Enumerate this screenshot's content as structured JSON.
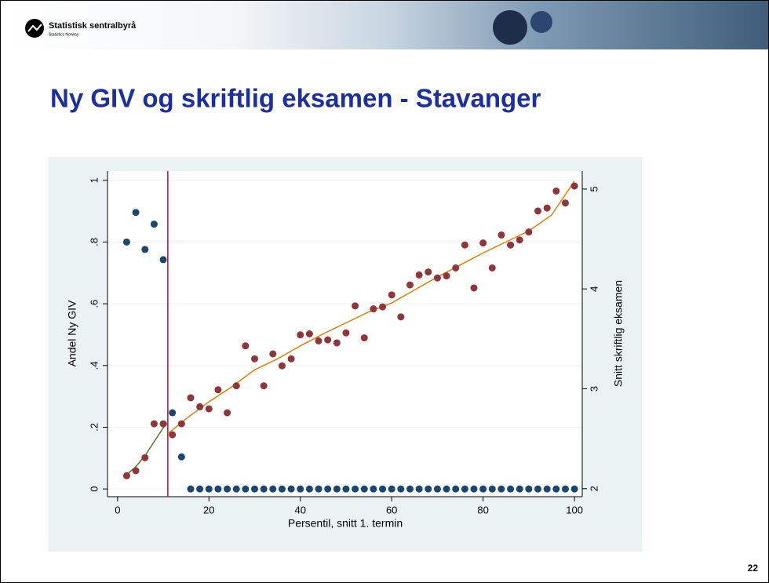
{
  "header": {
    "logo": "Statistisk sentralbyrå",
    "logo_sub": "Statistics Norway"
  },
  "title": "Ny GIV og skriftlig eksamen - Stavanger",
  "page_number": "22",
  "chart_data": {
    "type": "scatter",
    "xlabel": "Persentil, snitt 1. termin",
    "ylabel": "Andel Ny GIV",
    "y2label": "Snitt skriftlig eksamen",
    "x": [
      2,
      4,
      6,
      8,
      10,
      12,
      14,
      16,
      18,
      20,
      22,
      24,
      26,
      28,
      30,
      32,
      34,
      36,
      38,
      40,
      42,
      44,
      46,
      48,
      50,
      52,
      54,
      56,
      58,
      60,
      62,
      64,
      66,
      68,
      70,
      72,
      74,
      76,
      78,
      80,
      82,
      84,
      86,
      88,
      90,
      92,
      94,
      96,
      98,
      100
    ],
    "series": [
      {
        "color": "#1a476f",
        "axis": "y",
        "values": [
          0.8,
          0.896,
          0.776,
          0.858,
          0.743,
          0.247,
          0.104,
          0,
          0,
          0,
          0,
          0,
          0,
          0,
          0,
          0,
          0,
          0,
          0,
          0,
          0,
          0,
          0,
          0,
          0,
          0,
          0,
          0,
          0,
          0,
          0,
          0,
          0,
          0,
          0,
          0,
          0,
          0,
          0,
          0,
          0,
          0,
          0,
          0,
          0,
          0,
          0,
          0,
          0,
          0
        ]
      },
      {
        "color": "#90353b",
        "axis": "y2",
        "values": [
          2.13,
          2.18,
          2.31,
          2.65,
          2.65,
          2.54,
          2.65,
          2.91,
          2.82,
          2.8,
          2.99,
          2.76,
          3.03,
          3.43,
          3.3,
          3.03,
          3.35,
          3.23,
          3.3,
          3.54,
          3.55,
          3.48,
          3.49,
          3.46,
          3.56,
          3.83,
          3.51,
          3.8,
          3.82,
          3.94,
          3.72,
          4.04,
          4.14,
          4.17,
          4.11,
          4.13,
          4.21,
          4.44,
          4.01,
          4.46,
          4.21,
          4.54,
          4.44,
          4.49,
          4.57,
          4.78,
          4.81,
          4.98,
          4.86,
          5.03
        ]
      }
    ],
    "fit_lines": [
      {
        "color": "#55752f",
        "axis": "y2",
        "x": [
          2,
          4,
          6,
          8,
          10,
          11
        ],
        "values": [
          2.14,
          2.22,
          2.33,
          2.47,
          2.61,
          2.66
        ]
      },
      {
        "color": "#e37e00",
        "axis": "y2",
        "x": [
          11,
          15,
          20,
          25,
          30,
          35,
          40,
          45,
          50,
          55,
          60,
          65,
          70,
          75,
          80,
          85,
          90,
          95,
          100
        ],
        "values": [
          2.55,
          2.7,
          2.87,
          3.02,
          3.19,
          3.3,
          3.43,
          3.55,
          3.66,
          3.77,
          3.86,
          3.99,
          4.12,
          4.24,
          4.36,
          4.47,
          4.58,
          4.74,
          5.08
        ]
      }
    ],
    "cutoff_x": 11,
    "cutoff_color": "#c10534",
    "xlim": [
      -2.2,
      101.7
    ],
    "xticks": [
      0,
      20,
      40,
      60,
      80,
      100
    ],
    "ylim": [
      -0.025,
      1.03
    ],
    "yticks": [
      0,
      {
        "value": 0.2,
        "label": ".2"
      },
      {
        "value": 0.4,
        "label": ".4"
      },
      {
        "value": 0.6,
        "label": ".6"
      },
      {
        "value": 0.8,
        "label": ".8"
      },
      1
    ],
    "y2lim": [
      1.92,
      5.18
    ],
    "y2ticks": [
      2,
      3,
      4,
      5
    ],
    "grid": true
  }
}
